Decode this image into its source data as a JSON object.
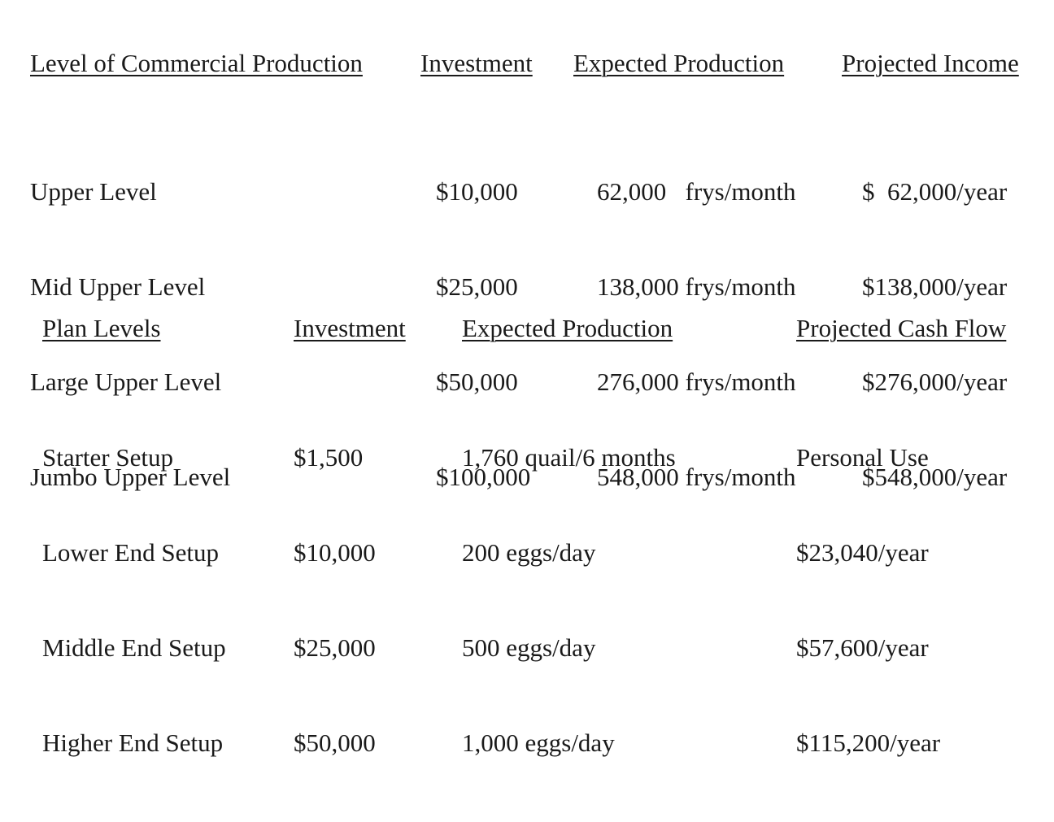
{
  "table1": {
    "headers": [
      "Level of Commercial Production",
      "Investment",
      "Expected Production",
      "Projected Income"
    ],
    "rows": [
      {
        "level": "Upper Level",
        "investment": "$10,000",
        "production": "62,000   frys/month",
        "income": "$  62,000/year"
      },
      {
        "level": "Mid Upper Level",
        "investment": "$25,000",
        "production": "138,000 frys/month",
        "income": "$138,000/year"
      },
      {
        "level": "Large Upper Level",
        "investment": "$50,000",
        "production": "276,000 frys/month",
        "income": "$276,000/year"
      },
      {
        "level": "Jumbo Upper Level",
        "investment": "$100,000",
        "production": "548,000 frys/month",
        "income": "$548,000/year"
      }
    ]
  },
  "table2": {
    "headers": [
      "Plan Levels",
      "Investment",
      "Expected Production",
      "Projected Cash Flow"
    ],
    "rows": [
      {
        "plan": "Starter Setup",
        "investment": "$1,500",
        "production": "1,760 quail/6 months",
        "cashflow": "Personal Use"
      },
      {
        "plan": "Lower End Setup",
        "investment": "$10,000",
        "production": "200 eggs/day",
        "cashflow": "$23,040/year"
      },
      {
        "plan": "Middle End Setup",
        "investment": "$25,000",
        "production": "500 eggs/day",
        "cashflow": "$57,600/year"
      },
      {
        "plan": "Higher End Setup",
        "investment": "$50,000",
        "production": "1,000 eggs/day",
        "cashflow": "$115,200/year"
      }
    ]
  }
}
